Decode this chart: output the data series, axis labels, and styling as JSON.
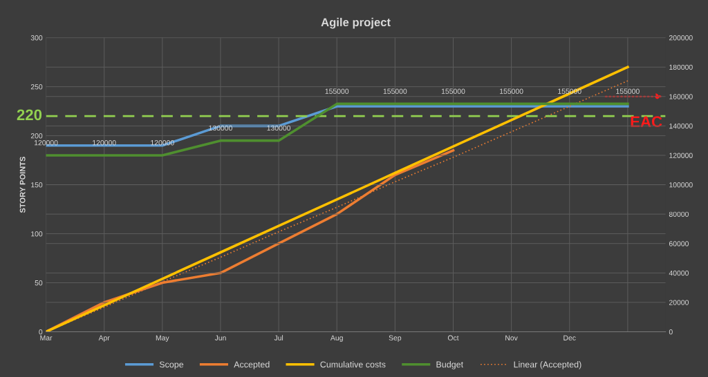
{
  "chart_data": {
    "type": "line",
    "title": "Agile project",
    "ylabel": "STORY POINTS",
    "categories": [
      "Mar",
      "Apr",
      "May",
      "Jun",
      "Jul",
      "Aug",
      "Sep",
      "Oct",
      "Nov",
      "Dec",
      null
    ],
    "series": [
      {
        "name": "Scope",
        "color": "#5b9bd5",
        "values": [
          190,
          190,
          190,
          210,
          210,
          230,
          230,
          230,
          230,
          230,
          230
        ]
      },
      {
        "name": "Accepted",
        "color": "#ed7d31",
        "values": [
          0,
          30,
          50,
          60,
          90,
          120,
          160,
          185,
          null,
          null,
          null
        ]
      },
      {
        "name": "Cumulative costs",
        "color": "#ffc000",
        "axis": "y2",
        "values": [
          0,
          18000,
          36000,
          54000,
          72000,
          90000,
          108000,
          126000,
          144000,
          162000,
          180000
        ]
      },
      {
        "name": "Budget",
        "color": "#4f8f2f",
        "axis": "y2",
        "values": [
          120000,
          120000,
          120000,
          130000,
          130000,
          155000,
          155000,
          155000,
          155000,
          155000,
          155000
        ],
        "value_labels": [
          "120000",
          "120000",
          "120000",
          "130000",
          "130000",
          "155000",
          "155000",
          "155000",
          "155000",
          "155000",
          "155000"
        ]
      },
      {
        "name": "Linear (Accepted)",
        "color": "#ed7d31",
        "line_style": "dotted",
        "values": [
          0,
          25,
          51,
          76,
          102,
          127,
          153,
          178,
          204,
          230,
          256
        ]
      }
    ],
    "ylim": [
      0,
      300
    ],
    "yticks": [
      0,
      50,
      100,
      150,
      200,
      250,
      300
    ],
    "y2lim": [
      0,
      200000
    ],
    "y2ticks": [
      0,
      20000,
      40000,
      60000,
      80000,
      100000,
      120000,
      140000,
      160000,
      180000,
      200000
    ],
    "grid": true,
    "legend": "bottom",
    "ref_lines": [
      {
        "axis": "y",
        "value": 220,
        "label": "220",
        "color": "#92d050",
        "line_style": "dashed"
      }
    ],
    "annotations": [
      "EAC"
    ]
  }
}
